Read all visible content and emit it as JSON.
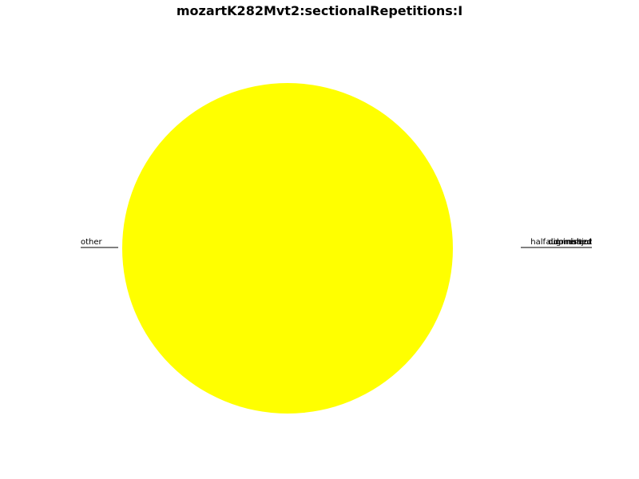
{
  "chart_data": {
    "type": "pie",
    "title": "mozartK282Mvt2:sectionalRepetitions:I",
    "slices": [
      {
        "label": "other",
        "value": 100.0,
        "color": "#ffff00"
      },
      {
        "label": "augmented",
        "value": 0.0,
        "color": "#ff0000"
      },
      {
        "label": "diminished",
        "value": 0.0,
        "color": "#00ff00"
      },
      {
        "label": "half diminished",
        "value": 0.0,
        "color": "#0000ff"
      },
      {
        "label": "major",
        "value": 0.0,
        "color": "#ff8000"
      },
      {
        "label": "minor",
        "value": 0.0,
        "color": "#800080"
      },
      {
        "label": "dominant",
        "value": 0.0,
        "color": "#00ffff"
      }
    ],
    "legend": "none",
    "label_style": "outside, underlined"
  }
}
